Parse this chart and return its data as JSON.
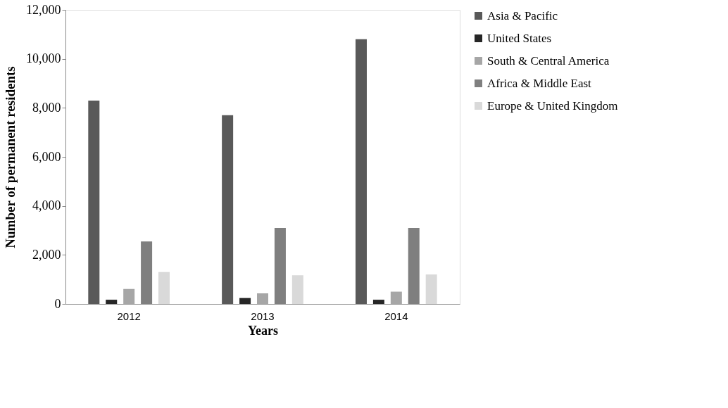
{
  "chart_data": {
    "type": "bar",
    "xlabel": "Years",
    "ylabel": "Number of permanent  residents",
    "categories": [
      "2012",
      "2013",
      "2014"
    ],
    "series": [
      {
        "name": "Asia & Pacific",
        "color": "#595959",
        "values": [
          8300,
          7700,
          10800
        ]
      },
      {
        "name": "United States",
        "color": "#262626",
        "values": [
          170,
          240,
          170
        ]
      },
      {
        "name": "South & Central America",
        "color": "#a6a6a6",
        "values": [
          610,
          430,
          500
        ]
      },
      {
        "name": "Africa & Middle East",
        "color": "#7f7f7f",
        "values": [
          2550,
          3100,
          3100
        ]
      },
      {
        "name": "Europe & United Kingdom",
        "color": "#d9d9d9",
        "values": [
          1300,
          1170,
          1200
        ]
      }
    ],
    "ylim": [
      0,
      12000
    ],
    "yticks": [
      {
        "value": 0,
        "label": "0"
      },
      {
        "value": 2000,
        "label": "2,000"
      },
      {
        "value": 4000,
        "label": "4,000"
      },
      {
        "value": 6000,
        "label": "6,000"
      },
      {
        "value": 8000,
        "label": "8,000"
      },
      {
        "value": 10000,
        "label": "10,000"
      },
      {
        "value": 12000,
        "label": "12,000"
      }
    ],
    "grid": false,
    "legend": "top right"
  }
}
